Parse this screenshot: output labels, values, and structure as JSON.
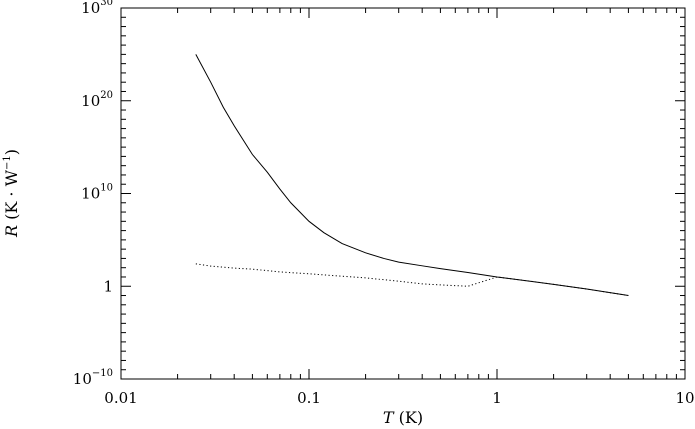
{
  "chart_data": {
    "type": "line",
    "xscale": "log",
    "yscale": "log",
    "xlim": [
      0.01,
      10
    ],
    "ylim": [
      1e-10,
      1e+30
    ],
    "grid": false,
    "xlabel": {
      "italic": "T",
      "rest": " (K)"
    },
    "ylabel": {
      "italic": "R",
      "rest": " (K · W",
      "sup": "−1",
      "close": ")"
    },
    "x_ticks": [
      {
        "value": 0.01,
        "label": "0.01"
      },
      {
        "value": 0.1,
        "label": "0.1"
      },
      {
        "value": 1,
        "label": "1"
      },
      {
        "value": 10,
        "label": "10"
      }
    ],
    "y_ticks": [
      {
        "value": 1e-10,
        "base": "10",
        "exp": "−10"
      },
      {
        "value": 1,
        "base": "1",
        "exp": ""
      },
      {
        "value": 10000000000.0,
        "base": "10",
        "exp": "10"
      },
      {
        "value": 1e+20,
        "base": "10",
        "exp": "20"
      },
      {
        "value": 1e+30,
        "base": "10",
        "exp": "30"
      }
    ],
    "series": [
      {
        "style": "solid",
        "x": [
          0.025,
          0.03,
          0.035,
          0.04,
          0.05,
          0.06,
          0.07,
          0.08,
          0.1,
          0.12,
          0.15,
          0.2,
          0.25,
          0.3,
          0.4,
          0.5,
          0.7,
          1,
          1.5,
          2,
          3,
          5
        ],
        "y": [
          1e+25,
          1e+22,
          2e+19,
          2e+17,
          160000000000000.0,
          2000000000000.0,
          30000000000.0,
          1000000000.0,
          10000000.0,
          600000.0,
          40000.0,
          4000,
          1000,
          400,
          160,
          80,
          30,
          10,
          3.5,
          1.6,
          0.5,
          0.1
        ]
      },
      {
        "style": "dotted",
        "x": [
          0.025,
          0.03,
          0.04,
          0.05,
          0.07,
          0.1,
          0.15,
          0.2,
          0.3,
          0.4,
          0.5,
          0.7,
          1,
          1.5,
          2,
          3,
          5
        ],
        "y": [
          260.0,
          150.0,
          90.0,
          70.0,
          35.0,
          22.0,
          12.0,
          8,
          3.5,
          1.8,
          1.4,
          1,
          10,
          3.5,
          1.6,
          0.5,
          0.1
        ]
      }
    ]
  }
}
